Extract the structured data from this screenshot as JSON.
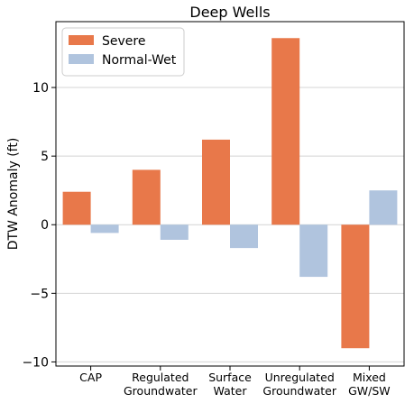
{
  "chart_data": {
    "type": "bar",
    "title": "Deep Wells",
    "xlabel": "",
    "ylabel": "DTW Anomaly (ft)",
    "categories": [
      [
        "CAP"
      ],
      [
        "Regulated",
        "Groundwater"
      ],
      [
        "Surface",
        "Water"
      ],
      [
        "Unregulated",
        "Groundwater"
      ],
      [
        "Mixed",
        "GW/SW"
      ]
    ],
    "series": [
      {
        "name": "Severe",
        "color": "#e8784a",
        "values": [
          2.4,
          4.0,
          6.2,
          13.6,
          -9.0
        ]
      },
      {
        "name": "Normal-Wet",
        "color": "#b0c4de",
        "values": [
          -0.6,
          -1.1,
          -1.7,
          -3.8,
          2.5
        ]
      }
    ],
    "ylim": [
      -10.3,
      14.8
    ],
    "yticks": [
      -10,
      -5,
      0,
      5,
      10
    ],
    "ytick_labels": [
      "−10",
      "−5",
      "0",
      "5",
      "10"
    ],
    "grid": "horizontal",
    "legend_position": "top-left"
  }
}
